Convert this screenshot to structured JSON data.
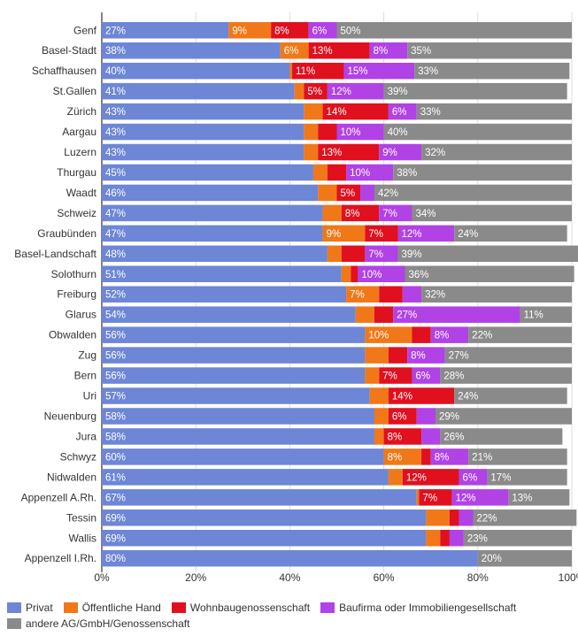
{
  "chart_data": {
    "type": "bar",
    "orientation": "horizontal",
    "stacked": true,
    "title": "",
    "xlabel": "",
    "ylabel": "",
    "xlim": [
      0,
      100
    ],
    "xticks": [
      "0%",
      "20%",
      "40%",
      "60%",
      "80%",
      "100%"
    ],
    "grid": true,
    "legend_position": "bottom",
    "categories": [
      "Genf",
      "Basel-Stadt",
      "Schaffhausen",
      "St.Gallen",
      "Zürich",
      "Aargau",
      "Luzern",
      "Thurgau",
      "Waadt",
      "Schweiz",
      "Graubünden",
      "Basel-Landschaft",
      "Solothurn",
      "Freiburg",
      "Glarus",
      "Obwalden",
      "Zug",
      "Bern",
      "Uri",
      "Neuenburg",
      "Jura",
      "Schwyz",
      "Nidwalden",
      "Appenzell A.Rh.",
      "Tessin",
      "Wallis",
      "Appenzell I.Rh."
    ],
    "series": [
      {
        "name": "Privat",
        "color": "#6d86d6",
        "values": [
          27,
          38,
          40,
          41,
          43,
          43,
          43,
          45,
          46,
          47,
          47,
          48,
          51,
          52,
          54,
          56,
          56,
          56,
          57,
          58,
          58,
          60,
          61,
          67,
          69,
          69,
          80
        ],
        "labels": [
          "27%",
          "38%",
          "40%",
          "41%",
          "43%",
          "43%",
          "43%",
          "45%",
          "46%",
          "47%",
          "47%",
          "48%",
          "51%",
          "52%",
          "54%",
          "56%",
          "56%",
          "56%",
          "57%",
          "58%",
          "58%",
          "60%",
          "61%",
          "67%",
          "69%",
          "69%",
          "80%"
        ]
      },
      {
        "name": "Öffentliche Hand",
        "color": "#f07818",
        "values": [
          9,
          6,
          0.5,
          2,
          4,
          3,
          3,
          3,
          4,
          4,
          9,
          3,
          2,
          7,
          4,
          10,
          5,
          3,
          4,
          3,
          2,
          8,
          3,
          0.5,
          5,
          3,
          0
        ],
        "labels": [
          "9%",
          "6%",
          "",
          "",
          "",
          "",
          "",
          "",
          "",
          "",
          "9%",
          "",
          "",
          "7%",
          "",
          "10%",
          "",
          "",
          "",
          "",
          "",
          "8%",
          "",
          "",
          "",
          "",
          ""
        ]
      },
      {
        "name": "Wohnbaugenossenschaft",
        "color": "#e0101e",
        "values": [
          8,
          13,
          11,
          5,
          14,
          4,
          13,
          4,
          5,
          8,
          7,
          5,
          1.5,
          5,
          4,
          4,
          4,
          7,
          14,
          6,
          8,
          2,
          12,
          7,
          2,
          2,
          0
        ],
        "labels": [
          "8%",
          "13%",
          "11%",
          "5%",
          "14%",
          "",
          "13%",
          "",
          "5%",
          "8%",
          "7%",
          "",
          "",
          "",
          "",
          "",
          "",
          "7%",
          "14%",
          "6%",
          "8%",
          "",
          "12%",
          "7%",
          "",
          "",
          ""
        ]
      },
      {
        "name": "Baufirma oder Immobiliengesellschaft",
        "color": "#b042e6",
        "values": [
          6,
          8,
          15,
          12,
          6,
          10,
          9,
          10,
          3,
          7,
          12,
          7,
          10,
          4,
          27,
          8,
          8,
          6,
          0,
          4,
          4,
          8,
          6,
          12,
          3,
          3,
          0
        ],
        "labels": [
          "6%",
          "8%",
          "15%",
          "12%",
          "6%",
          "10%",
          "9%",
          "10%",
          "",
          "7%",
          "12%",
          "7%",
          "10%",
          "",
          "27%",
          "8%",
          "8%",
          "6%",
          "",
          "",
          "",
          "8%",
          "6%",
          "12%",
          "",
          "",
          ""
        ]
      },
      {
        "name": "andere AG/GmbH/Genossenschaft",
        "color": "#8a8a8a",
        "values": [
          50,
          35,
          33,
          39,
          33,
          40,
          32,
          38,
          42,
          34,
          24,
          39,
          36,
          32,
          11,
          22,
          27,
          28,
          24,
          29,
          26,
          21,
          17,
          13,
          22,
          23,
          20
        ],
        "labels": [
          "50%",
          "35%",
          "33%",
          "39%",
          "33%",
          "40%",
          "32%",
          "38%",
          "42%",
          "34%",
          "24%",
          "39%",
          "36%",
          "32%",
          "11%",
          "22%",
          "27%",
          "28%",
          "24%",
          "29%",
          "26%",
          "21%",
          "17%",
          "13%",
          "22%",
          "23%",
          "20%"
        ]
      }
    ]
  }
}
